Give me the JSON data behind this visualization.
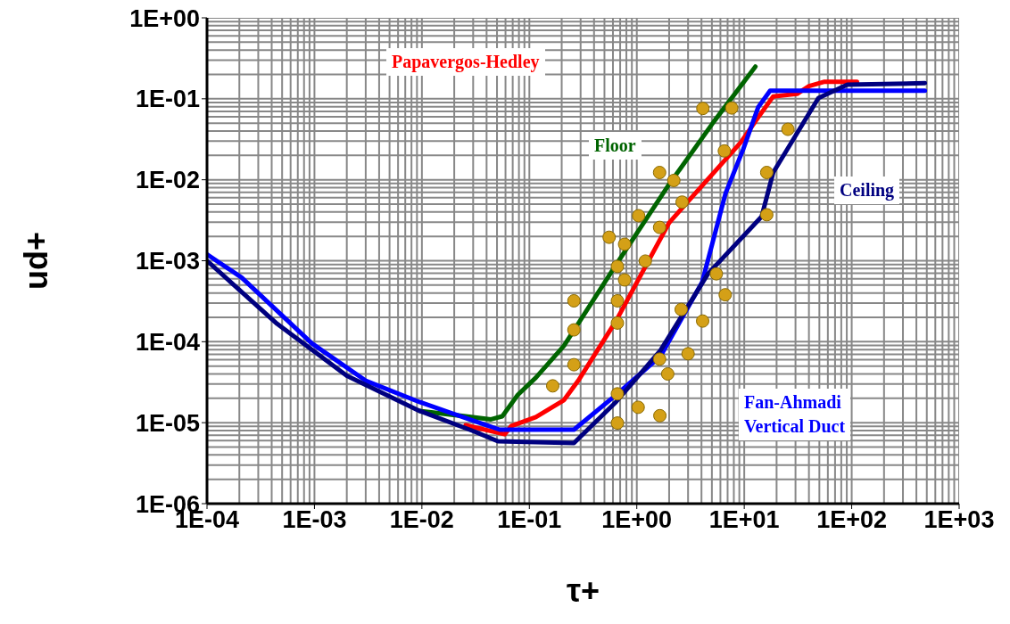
{
  "chart_data": {
    "type": "line",
    "xlabel": "τ+",
    "ylabel": "ud+",
    "log": "xy",
    "grid": true,
    "marker": "none",
    "line_style": "solid",
    "xlim": [
      0.0001,
      1000
    ],
    "ylim": [
      1e-06,
      1
    ],
    "xticks": [
      {
        "value": 0.0001,
        "label": "1E-04"
      },
      {
        "value": 0.001,
        "label": "1E-03"
      },
      {
        "value": 0.01,
        "label": "1E-02"
      },
      {
        "value": 0.1,
        "label": "1E-01"
      },
      {
        "value": 1,
        "label": "1E+00"
      },
      {
        "value": 10,
        "label": "1E+01"
      },
      {
        "value": 100,
        "label": "1E+02"
      },
      {
        "value": 1000,
        "label": "1E+03"
      }
    ],
    "yticks": [
      {
        "value": 1e-06,
        "label": "1E-06"
      },
      {
        "value": 1e-05,
        "label": "1E-05"
      },
      {
        "value": 0.0001,
        "label": "1E-04"
      },
      {
        "value": 0.001,
        "label": "1E-03"
      },
      {
        "value": 0.01,
        "label": "1E-02"
      },
      {
        "value": 0.1,
        "label": "1E-01"
      },
      {
        "value": 1,
        "label": "1E+00"
      }
    ],
    "series": [
      {
        "name": "Papavergos-Hedley",
        "color": "#ff0000",
        "x": [
          0.0255,
          0.059,
          0.068,
          0.115,
          0.21,
          0.285,
          0.64,
          2.0,
          9.3,
          13.5,
          18.6,
          31,
          40,
          55,
          112
        ],
        "values": [
          9.3e-06,
          7.2e-06,
          9.1e-06,
          1.17e-05,
          1.9e-05,
          3.3e-05,
          0.00018,
          0.00295,
          0.029,
          0.059,
          0.107,
          0.115,
          0.143,
          0.162,
          0.162
        ]
      },
      {
        "name": "Floor",
        "color": "#006400",
        "x": [
          0.0095,
          0.044,
          0.056,
          0.078,
          0.115,
          0.21,
          0.64,
          2.0,
          5.2,
          12.7
        ],
        "values": [
          1.4e-05,
          1.1e-05,
          1.2e-05,
          2.2e-05,
          3.6e-05,
          8.9e-05,
          0.00089,
          0.0088,
          0.052,
          0.25
        ]
      },
      {
        "name": "Fan-Ahmadi Vertical Duct",
        "color": "#0000ff",
        "x": [
          0.0001,
          0.00021,
          0.00095,
          0.003,
          0.0095,
          0.03,
          0.053,
          0.26,
          0.64,
          1.66,
          4.05,
          6.7,
          9.8,
          13.5,
          17.4,
          480
        ],
        "values": [
          0.0012,
          0.00062,
          9.5e-05,
          3.3e-05,
          1.8e-05,
          1.06e-05,
          8.2e-06,
          8.2e-06,
          2.2e-05,
          6.6e-05,
          0.00054,
          0.0068,
          0.024,
          0.079,
          0.126,
          0.126
        ]
      },
      {
        "name": "Ceiling",
        "color": "#000080",
        "x": [
          0.0001,
          0.00045,
          0.002,
          0.0095,
          0.03,
          0.051,
          0.26,
          0.64,
          1.66,
          4.6,
          14.5,
          18.6,
          49,
          91,
          480
        ],
        "values": [
          0.001,
          0.000166,
          3.8e-05,
          1.4e-05,
          7.9e-06,
          5.9e-06,
          5.6e-06,
          1.8e-05,
          7.8e-05,
          0.00069,
          0.0035,
          0.0123,
          0.102,
          0.149,
          0.156
        ]
      },
      {
        "type": "scatter",
        "marker": "circle",
        "color": "#d4a017",
        "x": [
          4.12,
          7.65,
          25.5,
          6.53,
          1.63,
          2.21,
          16.2,
          2.64,
          16.2,
          1.04,
          1.63,
          0.553,
          0.77,
          1.2,
          0.66,
          0.77,
          5.5,
          6.65,
          0.26,
          0.66,
          2.59,
          0.66,
          4.1,
          0.26,
          3.0,
          0.26,
          1.63,
          1.94,
          0.165,
          0.66,
          1.03,
          1.64,
          0.66
        ],
        "values": [
          0.076,
          0.077,
          0.042,
          0.0227,
          0.0123,
          0.0098,
          0.0123,
          0.0053,
          0.0037,
          0.0036,
          0.00258,
          0.00195,
          0.0016,
          0.00099,
          0.00085,
          0.00058,
          0.00069,
          0.00038,
          0.00032,
          0.00032,
          0.00025,
          0.00017,
          0.00018,
          0.00014,
          7.1e-05,
          5.2e-05,
          6.1e-05,
          4e-05,
          2.85e-05,
          2.27e-05,
          1.55e-05,
          1.22e-05,
          9.9e-06
        ]
      }
    ]
  }
}
